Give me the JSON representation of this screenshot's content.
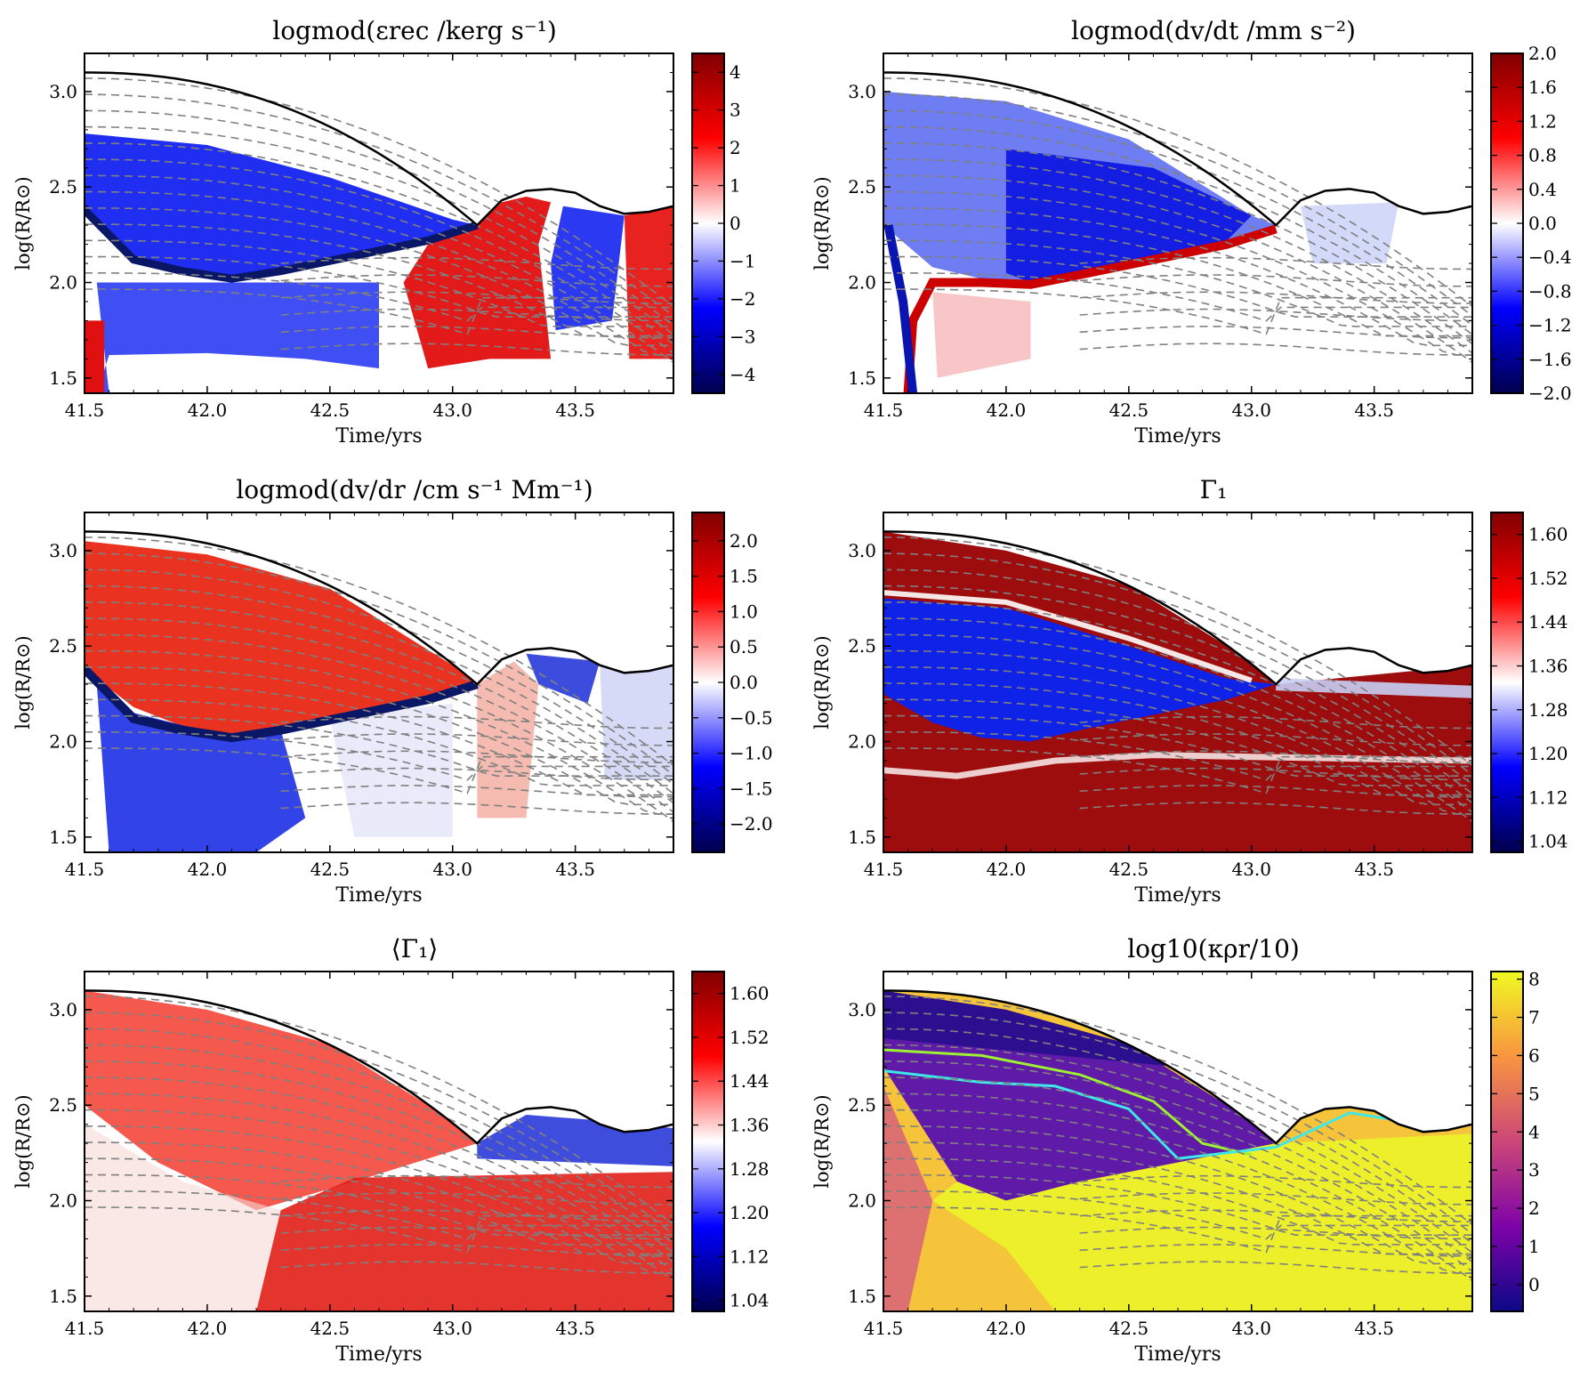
{
  "chart_data": [
    {
      "type": "heatmap",
      "title": "logmod(εrec /kerg s⁻¹)",
      "xlabel": "Time/yrs",
      "ylabel": "log(R/R⊙)",
      "xlim": [
        41.5,
        43.9
      ],
      "ylim": [
        1.42,
        3.2
      ],
      "xticks": [
        "41.5",
        "42.0",
        "42.5",
        "43.0",
        "43.5"
      ],
      "yticks": [
        "1.5",
        "2.0",
        "2.5",
        "3.0"
      ],
      "colorbar": {
        "cmap": "seismic",
        "range": [
          -4.5,
          4.5
        ],
        "ticks": [
          "4",
          "3",
          "2",
          "1",
          "0",
          "−1",
          "−2",
          "−3",
          "−4"
        ]
      }
    },
    {
      "type": "heatmap",
      "title": "logmod(dv/dt /mm s⁻²)",
      "xlabel": "Time/yrs",
      "ylabel": "log(R/R⊙)",
      "xlim": [
        41.5,
        43.9
      ],
      "ylim": [
        1.42,
        3.2
      ],
      "xticks": [
        "41.5",
        "42.0",
        "42.5",
        "43.0",
        "43.5"
      ],
      "yticks": [
        "1.5",
        "2.0",
        "2.5",
        "3.0"
      ],
      "colorbar": {
        "cmap": "seismic",
        "range": [
          -2.0,
          2.0
        ],
        "ticks": [
          "2.0",
          "1.6",
          "1.2",
          "0.8",
          "0.4",
          "0.0",
          "−0.4",
          "−0.8",
          "−1.2",
          "−1.6",
          "−2.0"
        ]
      }
    },
    {
      "type": "heatmap",
      "title": "logmod(dv/dr /cm s⁻¹ Mm⁻¹)",
      "xlabel": "Time/yrs",
      "ylabel": "log(R/R⊙)",
      "xlim": [
        41.5,
        43.9
      ],
      "ylim": [
        1.42,
        3.2
      ],
      "xticks": [
        "41.5",
        "42.0",
        "42.5",
        "43.0",
        "43.5"
      ],
      "yticks": [
        "1.5",
        "2.0",
        "2.5",
        "3.0"
      ],
      "colorbar": {
        "cmap": "seismic",
        "range": [
          -2.4,
          2.4
        ],
        "ticks": [
          "2.0",
          "1.5",
          "1.0",
          "0.5",
          "0.0",
          "−0.5",
          "−1.0",
          "−1.5",
          "−2.0"
        ]
      }
    },
    {
      "type": "heatmap",
      "title": "Γ₁",
      "xlabel": "Time/yrs",
      "ylabel": "log(R/R⊙)",
      "xlim": [
        41.5,
        43.9
      ],
      "ylim": [
        1.42,
        3.2
      ],
      "xticks": [
        "41.5",
        "42.0",
        "42.5",
        "43.0",
        "43.5"
      ],
      "yticks": [
        "1.5",
        "2.0",
        "2.5",
        "3.0"
      ],
      "colorbar": {
        "cmap": "seismic",
        "range": [
          1.02,
          1.64
        ],
        "ticks": [
          "1.60",
          "1.52",
          "1.44",
          "1.36",
          "1.28",
          "1.20",
          "1.12",
          "1.04"
        ]
      }
    },
    {
      "type": "heatmap",
      "title": "⟨Γ₁⟩",
      "xlabel": "Time/yrs",
      "ylabel": "log(R/R⊙)",
      "xlim": [
        41.5,
        43.9
      ],
      "ylim": [
        1.42,
        3.2
      ],
      "xticks": [
        "41.5",
        "42.0",
        "42.5",
        "43.0",
        "43.5"
      ],
      "yticks": [
        "1.5",
        "2.0",
        "2.5",
        "3.0"
      ],
      "colorbar": {
        "cmap": "seismic",
        "range": [
          1.02,
          1.64
        ],
        "ticks": [
          "1.60",
          "1.52",
          "1.44",
          "1.36",
          "1.28",
          "1.20",
          "1.12",
          "1.04"
        ]
      }
    },
    {
      "type": "heatmap",
      "title": "log10(κρr/10)",
      "xlabel": "Time/yrs",
      "ylabel": "log(R/R⊙)",
      "xlim": [
        41.5,
        43.9
      ],
      "ylim": [
        1.42,
        3.2
      ],
      "xticks": [
        "41.5",
        "42.0",
        "42.5",
        "43.0",
        "43.5"
      ],
      "yticks": [
        "1.5",
        "2.0",
        "2.5",
        "3.0"
      ],
      "colorbar": {
        "cmap": "plasma",
        "range": [
          -0.7,
          8.2
        ],
        "ticks": [
          "8",
          "7",
          "6",
          "5",
          "4",
          "3",
          "2",
          "1",
          "0"
        ]
      }
    }
  ]
}
